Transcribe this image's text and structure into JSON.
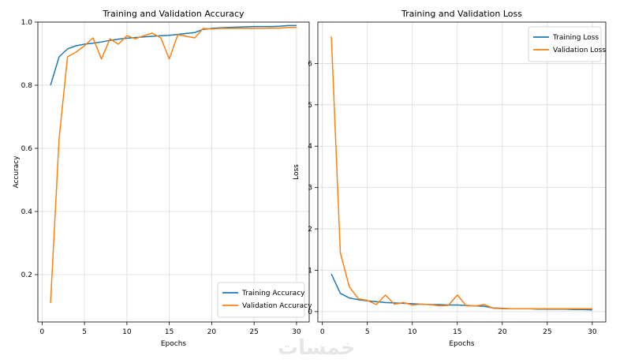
{
  "watermark": "خمسات",
  "chart_data": [
    {
      "type": "line",
      "title": "Training and Validation Accuracy",
      "xlabel": "Epochs",
      "ylabel": "Accuracy",
      "xlim": [
        -0.5,
        31.5
      ],
      "ylim": [
        0.05,
        1.0
      ],
      "xticks": [
        0,
        5,
        10,
        15,
        20,
        25,
        30
      ],
      "yticks": [
        0.2,
        0.4,
        0.6,
        0.8,
        1.0
      ],
      "grid": true,
      "legend": "lower-right",
      "x": [
        1,
        2,
        3,
        4,
        5,
        6,
        7,
        8,
        9,
        10,
        11,
        12,
        13,
        14,
        15,
        16,
        17,
        18,
        19,
        20,
        21,
        22,
        23,
        24,
        25,
        26,
        27,
        28,
        29,
        30
      ],
      "series": [
        {
          "name": "Training Accuracy",
          "color": "#1f77b4",
          "values": [
            0.8,
            0.89,
            0.915,
            0.925,
            0.93,
            0.933,
            0.937,
            0.942,
            0.946,
            0.949,
            0.951,
            0.953,
            0.955,
            0.957,
            0.958,
            0.961,
            0.964,
            0.967,
            0.977,
            0.98,
            0.982,
            0.983,
            0.984,
            0.985,
            0.986,
            0.986,
            0.986,
            0.987,
            0.989,
            0.989
          ]
        },
        {
          "name": "Validation Accuracy",
          "color": "#ff7f0e",
          "values": [
            0.11,
            0.63,
            0.89,
            0.905,
            0.925,
            0.95,
            0.883,
            0.947,
            0.93,
            0.957,
            0.947,
            0.957,
            0.965,
            0.95,
            0.883,
            0.96,
            0.955,
            0.95,
            0.98,
            0.978,
            0.98,
            0.98,
            0.98,
            0.98,
            0.98,
            0.98,
            0.981,
            0.981,
            0.983,
            0.983
          ]
        }
      ]
    },
    {
      "type": "line",
      "title": "Training and Validation Loss",
      "xlabel": "Epochs",
      "ylabel": "Loss",
      "xlim": [
        -0.5,
        31.5
      ],
      "ylim": [
        -0.25,
        7.0
      ],
      "xticks": [
        0,
        5,
        10,
        15,
        20,
        25,
        30
      ],
      "yticks": [
        0,
        1,
        2,
        3,
        4,
        5,
        6
      ],
      "grid": true,
      "legend": "upper-right",
      "x": [
        1,
        2,
        3,
        4,
        5,
        6,
        7,
        8,
        9,
        10,
        11,
        12,
        13,
        14,
        15,
        16,
        17,
        18,
        19,
        20,
        21,
        22,
        23,
        24,
        25,
        26,
        27,
        28,
        29,
        30
      ],
      "series": [
        {
          "name": "Training Loss",
          "color": "#1f77b4",
          "values": [
            0.91,
            0.44,
            0.33,
            0.29,
            0.26,
            0.24,
            0.22,
            0.21,
            0.2,
            0.19,
            0.18,
            0.17,
            0.17,
            0.16,
            0.16,
            0.15,
            0.14,
            0.13,
            0.09,
            0.08,
            0.07,
            0.07,
            0.07,
            0.06,
            0.06,
            0.06,
            0.06,
            0.05,
            0.05,
            0.04
          ]
        },
        {
          "name": "Validation Loss",
          "color": "#ff7f0e",
          "values": [
            6.65,
            1.42,
            0.6,
            0.31,
            0.27,
            0.17,
            0.4,
            0.18,
            0.22,
            0.16,
            0.18,
            0.17,
            0.14,
            0.15,
            0.4,
            0.14,
            0.14,
            0.17,
            0.08,
            0.07,
            0.07,
            0.07,
            0.07,
            0.07,
            0.07,
            0.07,
            0.07,
            0.07,
            0.07,
            0.07
          ]
        }
      ]
    }
  ]
}
